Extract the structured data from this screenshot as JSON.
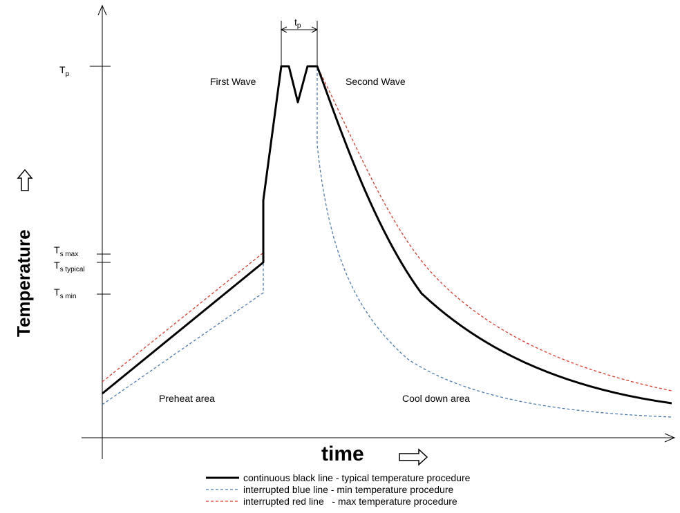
{
  "chart_data": {
    "type": "line",
    "title": "",
    "xlabel": "time",
    "ylabel": "Temperature",
    "y_ticks": [
      {
        "main": "T",
        "sub": "p",
        "level": "Tp"
      },
      {
        "main": "T",
        "sub": "s max",
        "level": "Ts_max"
      },
      {
        "main": "T",
        "sub": "s typical",
        "level": "Ts_typical"
      },
      {
        "main": "T",
        "sub": "s min",
        "level": "Ts_min"
      }
    ],
    "peak_time_label": {
      "main": "t",
      "sub": "p"
    },
    "annotations": {
      "first_wave": "First Wave",
      "second_wave": "Second Wave",
      "preheat": "Preheat area",
      "cooldown": "Cool down area"
    },
    "legend_placement": "bottom-center",
    "series": [
      {
        "key": "typical",
        "style": "solid",
        "color": "#000000",
        "legend": "continuous black line - typical temperature procedure"
      },
      {
        "key": "min",
        "style": "dashed",
        "color": "#4a7ab0",
        "legend": "interrupted blue line - min temperature procedure"
      },
      {
        "key": "max",
        "style": "dashed",
        "color": "#e03a2a",
        "legend": "interrupted red line   - max temperature procedure"
      }
    ]
  }
}
